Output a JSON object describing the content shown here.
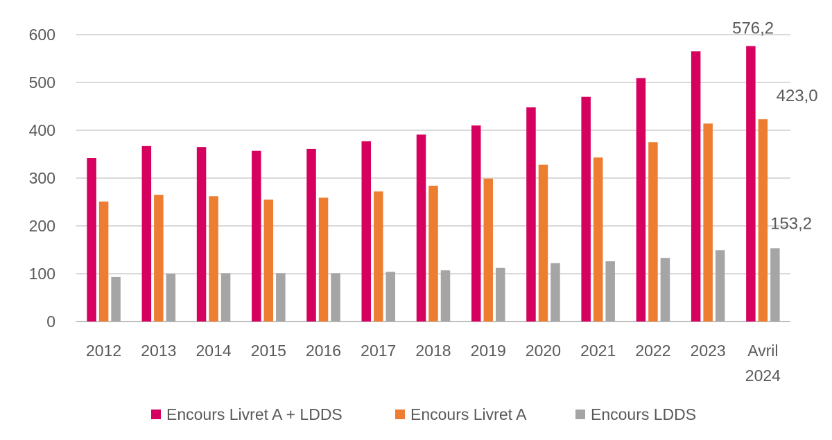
{
  "chart_data": {
    "type": "bar",
    "title": "",
    "xlabel": "",
    "ylabel": "",
    "ylim": [
      0,
      600
    ],
    "yticks": [
      0,
      100,
      200,
      300,
      400,
      500,
      600
    ],
    "grid": true,
    "legend_position": "bottom",
    "categories": [
      [
        "2012"
      ],
      [
        "2013"
      ],
      [
        "2014"
      ],
      [
        "2015"
      ],
      [
        "2016"
      ],
      [
        "2017"
      ],
      [
        "2018"
      ],
      [
        "2019"
      ],
      [
        "2020"
      ],
      [
        "2021"
      ],
      [
        "2022"
      ],
      [
        "2023"
      ],
      [
        "Avril",
        "2024"
      ]
    ],
    "series": [
      {
        "name": "Encours Livret A + LDDS",
        "color": "#D6005F",
        "values": [
          342,
          367,
          365,
          357,
          361,
          377,
          391,
          410,
          448,
          470,
          509,
          565,
          576.2
        ]
      },
      {
        "name": "Encours Livret A",
        "color": "#ED7D31",
        "values": [
          251,
          265,
          262,
          255,
          259,
          272,
          284,
          299,
          328,
          343,
          375,
          414,
          423.0
        ]
      },
      {
        "name": "Encours LDDS",
        "color": "#A5A5A5",
        "values": [
          93,
          100,
          101,
          101,
          101,
          104,
          107,
          112,
          122,
          126,
          133,
          149,
          153.2
        ]
      }
    ],
    "data_labels": [
      {
        "series": 0,
        "index": 12,
        "text": "576,2"
      },
      {
        "series": 1,
        "index": 12,
        "text": "423,0"
      },
      {
        "series": 2,
        "index": 12,
        "text": "153,2"
      }
    ]
  }
}
